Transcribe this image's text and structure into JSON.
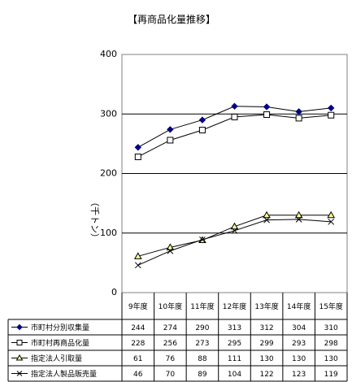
{
  "chart_data": {
    "type": "line",
    "title": "【再商品化量推移】",
    "ylabel": "（千トン）",
    "ylim": [
      0,
      400
    ],
    "yticks": [
      "0",
      "100",
      "200",
      "300",
      "400"
    ],
    "grid": true,
    "legend": "data-table",
    "categories": [
      "9年度",
      "10年度",
      "11年度",
      "12年度",
      "13年度",
      "14年度",
      "15年度"
    ],
    "series": [
      {
        "name": "市町村分別収集量",
        "marker": "diamond-filled",
        "values": [
          244,
          274,
          290,
          313,
          312,
          304,
          310
        ]
      },
      {
        "name": "市町村再商品化量",
        "marker": "square-open",
        "values": [
          228,
          256,
          273,
          295,
          299,
          293,
          298
        ]
      },
      {
        "name": "指定法人引取量",
        "marker": "triangle-yellow",
        "values": [
          61,
          76,
          88,
          111,
          130,
          130,
          130
        ]
      },
      {
        "name": "指定法人製品販売量",
        "marker": "cross",
        "values": [
          46,
          70,
          89,
          104,
          122,
          123,
          119
        ]
      }
    ],
    "colors": {
      "plot_bg": "#ffffff",
      "line": "#000000",
      "triangle_fill": "#ffff99",
      "diamond_fill": "#000080"
    }
  }
}
